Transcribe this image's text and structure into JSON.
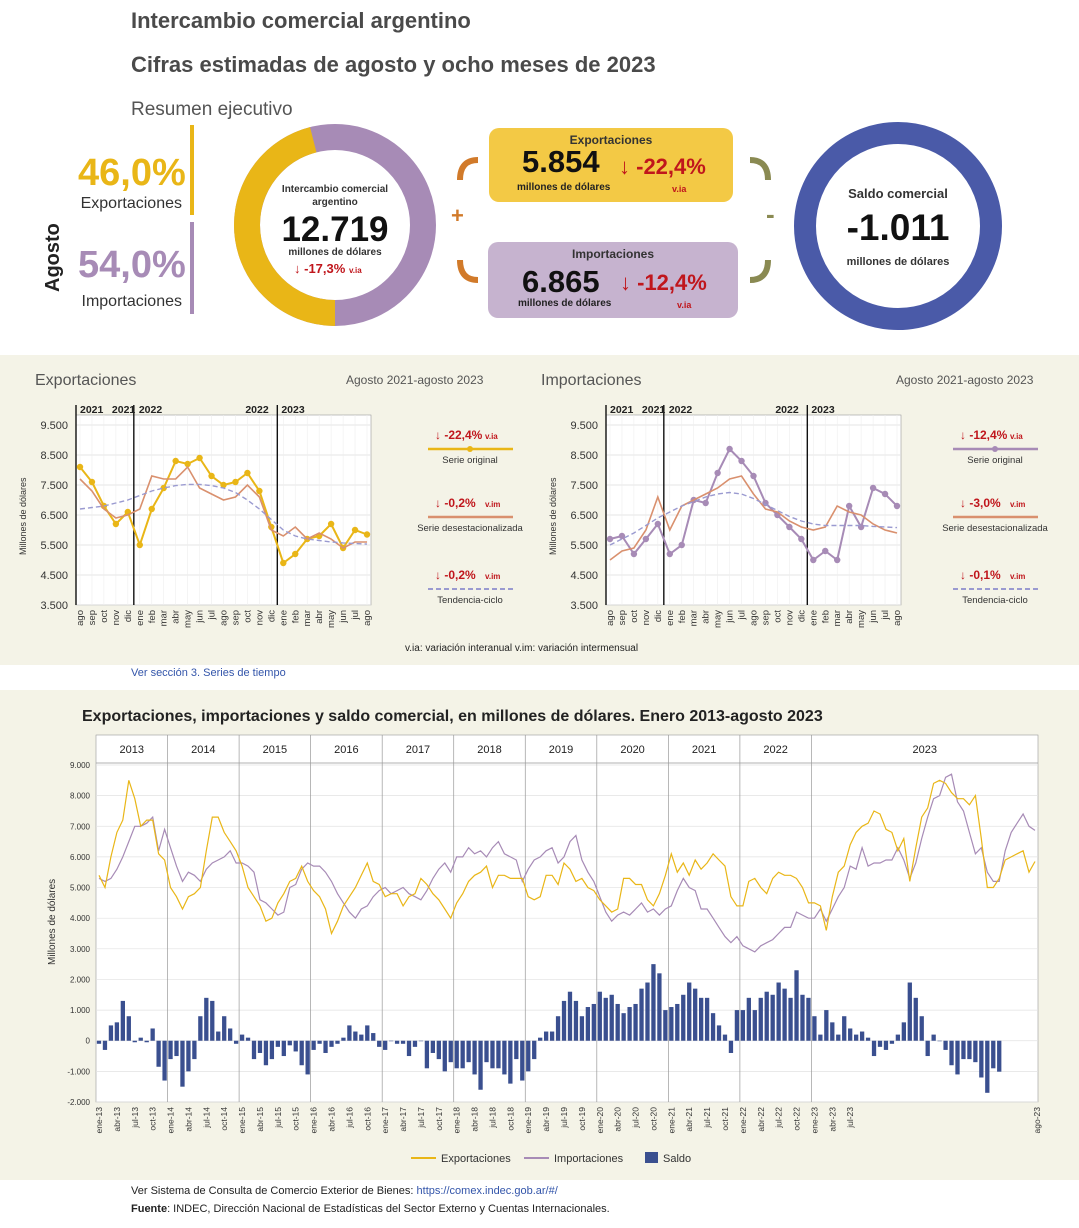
{
  "header": {
    "title": "Intercambio comercial argentino",
    "subtitle": "Cifras estimadas de agosto y ocho meses de 2023",
    "section": "Resumen ejecutivo"
  },
  "summary": {
    "month_label": "Agosto",
    "exp_share": "46,0%",
    "exp_share_label": "Exportaciones",
    "imp_share": "54,0%",
    "imp_share_label": "Importaciones",
    "ring_title": "Intercambio comercial argentino",
    "ring_value": "12.719",
    "ring_unit": "millones de dólares",
    "ring_var": "-17,3%",
    "ring_var_tag": "v.ia",
    "plus": "+",
    "minus": "-",
    "exp_title": "Exportaciones",
    "exp_value": "5.854",
    "exp_unit": "millones de dólares",
    "exp_var": "-22,4%",
    "exp_var_tag": "v.ia",
    "imp_title": "Importaciones",
    "imp_value": "6.865",
    "imp_unit": "millones de dólares",
    "imp_var": "-12,4%",
    "imp_var_tag": "v.ia",
    "saldo_title": "Saldo comercial",
    "saldo_value": "-1.011",
    "saldo_unit": "millones de dólares",
    "arrow": "↓"
  },
  "colors": {
    "exports": "#e9b617",
    "imports": "#a78bb6",
    "desest_exp": "#d9906e",
    "desest_imp": "#d9906e",
    "trend": "#9a9ad0",
    "saldo": "#3a4f8f",
    "saldo_ring": "#4a5aa8",
    "red": "#c0161c"
  },
  "footnote_var": "v.ia: variación interanual   v.im: variación intermensual",
  "link_series": "Ver sección 3. Series de tiempo",
  "footer": {
    "sistema_prefix": "Ver Sistema de Consulta de Comercio Exterior de Bienes: ",
    "sistema_url": "https://comex.indec.gob.ar/#/",
    "fuente_label": "Fuente",
    "fuente_text": ": INDEC, Dirección Nacional de Estadísticas del Sector Externo y Cuentas Internacionales."
  },
  "chart_data": [
    {
      "type": "donut",
      "values": [
        46.0,
        54.0
      ],
      "categories": [
        "Exportaciones",
        "Importaciones"
      ]
    },
    {
      "type": "line",
      "title": "Exportaciones",
      "subtitle": "Agosto 2021-agosto 2023",
      "ylabel": "Millones de dólares",
      "ylim": [
        3500,
        9500
      ],
      "yticks": [
        "9.500",
        "8.500",
        "7.500",
        "6.500",
        "5.500",
        "4.500",
        "3.500"
      ],
      "ytick_values": [
        9500,
        8500,
        7500,
        6500,
        5500,
        4500,
        3500
      ],
      "year_labels": [
        "2021",
        "2021",
        "2022",
        "2022",
        "2023"
      ],
      "categories": [
        "ago",
        "sep",
        "oct",
        "nov",
        "dic",
        "ene",
        "feb",
        "mar",
        "abr",
        "may",
        "jun",
        "jul",
        "ago",
        "sep",
        "oct",
        "nov",
        "dic",
        "ene",
        "feb",
        "mar",
        "abr",
        "may",
        "jun",
        "jul",
        "ago"
      ],
      "series": [
        {
          "name": "Serie original",
          "values": [
            8100,
            7600,
            6800,
            6200,
            6600,
            5500,
            6700,
            7400,
            8300,
            8200,
            8400,
            7800,
            7500,
            7600,
            7900,
            7300,
            6100,
            4900,
            5200,
            5700,
            5800,
            6200,
            5400,
            6000,
            5850
          ],
          "markers": true
        },
        {
          "name": "Serie desestacionalizada",
          "values": [
            7700,
            7300,
            6700,
            6400,
            6500,
            6700,
            7800,
            7700,
            7700,
            8100,
            7400,
            7200,
            7000,
            7100,
            7500,
            7100,
            6000,
            5800,
            6100,
            5700,
            5900,
            5700,
            5400,
            5600,
            5600
          ]
        },
        {
          "name": "Tendencia-ciclo",
          "values": [
            6700,
            6750,
            6800,
            6900,
            7000,
            7150,
            7300,
            7400,
            7480,
            7520,
            7520,
            7480,
            7400,
            7250,
            7000,
            6700,
            6350,
            6000,
            5800,
            5700,
            5650,
            5600,
            5570,
            5550,
            5530
          ],
          "dashed": true
        }
      ],
      "legend": [
        {
          "var": "-22,4%",
          "tag": "v.ia",
          "label": "Serie original"
        },
        {
          "var": "-0,2%",
          "tag": "v.im",
          "label": "Serie desestacionalizada"
        },
        {
          "var": "-0,2%",
          "tag": "v.im",
          "label": "Tendencia-ciclo"
        }
      ]
    },
    {
      "type": "line",
      "title": "Importaciones",
      "subtitle": "Agosto 2021-agosto 2023",
      "ylabel": "Millones de dólares",
      "ylim": [
        3500,
        9500
      ],
      "yticks": [
        "9.500",
        "8.500",
        "7.500",
        "6.500",
        "5.500",
        "4.500",
        "3.500"
      ],
      "ytick_values": [
        9500,
        8500,
        7500,
        6500,
        5500,
        4500,
        3500
      ],
      "year_labels": [
        "2021",
        "2021",
        "2022",
        "2022",
        "2023"
      ],
      "categories": [
        "ago",
        "sep",
        "oct",
        "nov",
        "dic",
        "ene",
        "feb",
        "mar",
        "abr",
        "may",
        "jun",
        "jul",
        "ago",
        "sep",
        "oct",
        "nov",
        "dic",
        "ene",
        "feb",
        "mar",
        "abr",
        "may",
        "jun",
        "jul",
        "ago"
      ],
      "series": [
        {
          "name": "Serie original",
          "values": [
            5700,
            5800,
            5200,
            5700,
            6200,
            5200,
            5500,
            7000,
            6900,
            7900,
            8700,
            8300,
            7800,
            6900,
            6500,
            6100,
            5700,
            5000,
            5300,
            5000,
            6800,
            6100,
            7400,
            7200,
            6800
          ],
          "markers": true
        },
        {
          "name": "Serie desestacionalizada",
          "values": [
            5000,
            5300,
            5400,
            6000,
            7100,
            6000,
            6800,
            7000,
            7200,
            7400,
            7700,
            7800,
            7200,
            6700,
            6600,
            6300,
            6100,
            6000,
            6100,
            6800,
            6600,
            6500,
            6200,
            6000,
            5900
          ]
        },
        {
          "name": "Tendencia-ciclo",
          "values": [
            5500,
            5700,
            5900,
            6150,
            6400,
            6600,
            6800,
            6950,
            7100,
            7200,
            7250,
            7200,
            7050,
            6850,
            6650,
            6450,
            6300,
            6200,
            6150,
            6150,
            6150,
            6150,
            6120,
            6100,
            6080
          ],
          "dashed": true
        }
      ],
      "legend": [
        {
          "var": "-12,4%",
          "tag": "v.ia",
          "label": "Serie original"
        },
        {
          "var": "-3,0%",
          "tag": "v.im",
          "label": "Serie desestacionalizada"
        },
        {
          "var": "-0,1%",
          "tag": "v.im",
          "label": "Tendencia-ciclo"
        }
      ]
    },
    {
      "type": "line+bar",
      "title": "Exportaciones, importaciones y saldo comercial, en millones de dólares. Enero 2013-agosto 2023",
      "ylabel": "Millones de dólares",
      "ylim": [
        -2000,
        9000
      ],
      "yticks": [
        "9.000",
        "8.000",
        "7.000",
        "6.000",
        "5.000",
        "4.000",
        "3.000",
        "2.000",
        "1.000",
        "0",
        "-1.000",
        "-2.000"
      ],
      "ytick_values": [
        9000,
        8000,
        7000,
        6000,
        5000,
        4000,
        3000,
        2000,
        1000,
        0,
        -1000,
        -2000
      ],
      "years": [
        "2013",
        "2014",
        "2015",
        "2016",
        "2017",
        "2018",
        "2019",
        "2020",
        "2021",
        "2022",
        "2023"
      ],
      "xtick_labels": [
        "ene-13",
        "abr-13",
        "jul-13",
        "oct-13",
        "ene-14",
        "abr-14",
        "jul-14",
        "oct-14",
        "ene-15",
        "abr-15",
        "jul-15",
        "oct-15",
        "ene-16",
        "abr-16",
        "jul-16",
        "oct-16",
        "ene-17",
        "abr-17",
        "jul-17",
        "oct-17",
        "ene-18",
        "abr-18",
        "jul-18",
        "oct-18",
        "ene-19",
        "abr-19",
        "jul-19",
        "oct-19",
        "ene-20",
        "abr-20",
        "jul-20",
        "oct-20",
        "ene-21",
        "abr-21",
        "jul-21",
        "oct-21",
        "ene-22",
        "abr-22",
        "jul-22",
        "oct-22",
        "ene-23",
        "abr-23",
        "jul-23",
        "ago-23"
      ],
      "legend": [
        "Exportaciones",
        "Importaciones",
        "Saldo"
      ],
      "exports": [
        5400,
        5000,
        6000,
        6800,
        7200,
        8500,
        7900,
        7000,
        7200,
        7200,
        6100,
        5900,
        5000,
        4700,
        4300,
        4700,
        4800,
        5000,
        6200,
        7300,
        7300,
        6800,
        6500,
        6200,
        5700,
        5000,
        4700,
        4400,
        3900,
        4000,
        4500,
        4800,
        5200,
        5300,
        5700,
        5200,
        4900,
        4700,
        4300,
        3500,
        3900,
        4400,
        4700,
        5000,
        5400,
        5800,
        5200,
        5100,
        4700,
        4800,
        4800,
        4400,
        4700,
        4800,
        5300,
        5100,
        4800,
        4600,
        4300,
        4000,
        4500,
        4800,
        5200,
        5400,
        5500,
        5700,
        5000,
        5400,
        5400,
        5300,
        5300,
        5300,
        4700,
        4600,
        4700,
        5400,
        5400,
        5100,
        5800,
        5600,
        5200,
        5300,
        5000,
        4900,
        4600,
        4400,
        4200,
        4300,
        5300,
        5300,
        5100,
        5100,
        4600,
        4400,
        4800,
        5400,
        6100,
        5500,
        5800,
        5400,
        5900,
        5600,
        5800,
        6100,
        5900,
        5700,
        4700,
        4400,
        4400,
        5200,
        5300,
        5000,
        4800,
        5300,
        5500,
        5400,
        5400,
        5300,
        5000,
        4500,
        4500,
        4400,
        3600,
        4700,
        5500,
        5700,
        6400,
        6800,
        7000,
        7100,
        7500,
        7400,
        6900,
        6800,
        6200,
        6600,
        5200,
        6300,
        7300,
        7600,
        8400,
        8500,
        8400,
        8100,
        7900,
        7900,
        7700,
        8000,
        6600,
        5000,
        5000,
        5300,
        5900,
        6000,
        6100,
        6200,
        5500,
        5850
      ],
      "imports": [
        5300,
        5200,
        5300,
        5600,
        6000,
        6500,
        7000,
        7000,
        7100,
        7300,
        6200,
        6900,
        6300,
        5700,
        5200,
        5500,
        5400,
        5200,
        5600,
        5800,
        5900,
        6000,
        6200,
        5800,
        5800,
        5700,
        5500,
        4600,
        4500,
        4300,
        4100,
        4200,
        5000,
        5100,
        5600,
        5800,
        5700,
        5700,
        5500,
        5200,
        4800,
        4500,
        4200,
        4000,
        4300,
        4400,
        4700,
        4900,
        5000,
        4800,
        4900,
        5000,
        4800,
        4700,
        4600,
        4900,
        5300,
        5600,
        5800,
        5500,
        6000,
        6000,
        6300,
        6100,
        6200,
        6000,
        6300,
        6500,
        6100,
        6000,
        5900,
        5200,
        5600,
        5900,
        6000,
        6200,
        6300,
        5800,
        6000,
        6500,
        6700,
        5900,
        5500,
        5200,
        4700,
        4200,
        3900,
        4100,
        4200,
        4100,
        4300,
        4500,
        4200,
        4300,
        4100,
        4300,
        4400,
        4900,
        5300,
        5000,
        4900,
        4300,
        4300,
        4000,
        3700,
        3400,
        3200,
        3400,
        3100,
        3000,
        2900,
        3100,
        3200,
        3300,
        3500,
        3700,
        3700,
        4200,
        4100,
        4000,
        4000,
        4300,
        3900,
        4300,
        4700,
        5000,
        5700,
        5600,
        6300,
        5700,
        5800,
        5800,
        5900,
        5900,
        6300,
        5900,
        5300,
        5800,
        6600,
        7300,
        7900,
        8000,
        8600,
        8700,
        7800,
        7500,
        6800,
        6100,
        6300,
        5500,
        5200,
        5200,
        6200,
        6800,
        7100,
        7400,
        7000,
        6865
      ],
      "saldo": [
        -100,
        -300,
        500,
        600,
        1300,
        800,
        -50,
        100,
        -50,
        400,
        -850,
        -1300,
        -600,
        -500,
        -1500,
        -1000,
        -600,
        800,
        1400,
        1300,
        300,
        800,
        400,
        -100,
        200,
        100,
        -600,
        -400,
        -800,
        -600,
        -200,
        -500,
        -150,
        -350,
        -800,
        -1100,
        -300,
        -100,
        -400,
        -200,
        -100,
        100,
        500,
        300,
        200,
        500,
        250,
        -200,
        -300,
        0,
        -100,
        -100,
        -500,
        -200,
        0,
        -900,
        -400,
        -600,
        -1000,
        -700,
        -900,
        -900,
        -700,
        -1100,
        -1600,
        -700,
        -900,
        -900,
        -1100,
        -1400,
        -600,
        -1300,
        -1000,
        -600,
        100,
        300,
        300,
        800,
        1300,
        1600,
        1300,
        800,
        1100,
        1200,
        1600,
        1400,
        1500,
        1200,
        900,
        1100,
        1200,
        1700,
        1900,
        2500,
        2200,
        1000,
        1100,
        1200,
        1500,
        1900,
        1700,
        1400,
        1400,
        900,
        500,
        200,
        -400,
        1000,
        1000,
        1400,
        1000,
        1400,
        1600,
        1500,
        1900,
        1700,
        1400,
        2300,
        1500,
        1400,
        800,
        200,
        1000,
        600,
        200,
        800,
        400,
        200,
        300,
        100,
        -500,
        -200,
        -300,
        -100,
        200,
        600,
        1900,
        1400,
        800,
        -500,
        200,
        0,
        -300,
        -800,
        -1100,
        -600,
        -600,
        -700,
        -1200,
        -1700,
        -900,
        -1011
      ]
    }
  ]
}
